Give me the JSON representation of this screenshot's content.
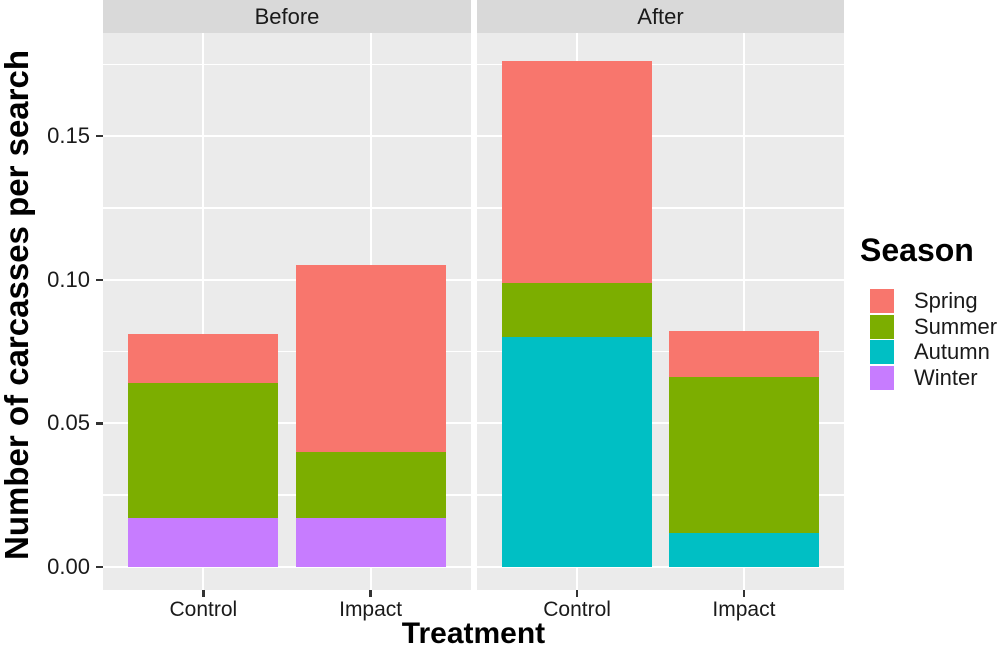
{
  "chart_data": {
    "type": "bar",
    "stacked": true,
    "title": "",
    "xlabel": "Treatment",
    "ylabel": "Number of carcasses per search",
    "ylim": [
      -0.008,
      0.1859
    ],
    "grid": "major and minor horizontal white gridlines, major vertical gridlines at category centers, on grey panel",
    "yticks": [
      {
        "value": 0.0,
        "label": "0.00"
      },
      {
        "value": 0.05,
        "label": "0.05"
      },
      {
        "value": 0.1,
        "label": "0.10"
      },
      {
        "value": 0.15,
        "label": "0.15"
      }
    ],
    "yminor": [
      0.025,
      0.075,
      0.125,
      0.175
    ],
    "colors": {
      "Spring": "#F8766D",
      "Summer": "#7CAE00",
      "Autumn": "#00BFC4",
      "Winter": "#C77CFF"
    },
    "panel_bg": "#EBEBEB",
    "strip_bg": "#D9D9D9",
    "legend_position": "right",
    "legend": {
      "title": "Season",
      "entries": [
        {
          "label": "Spring",
          "color": "#F8766D"
        },
        {
          "label": "Summer",
          "color": "#7CAE00"
        },
        {
          "label": "Autumn",
          "color": "#00BFC4"
        },
        {
          "label": "Winter",
          "color": "#C77CFF"
        }
      ]
    },
    "stack_order_bottom_to_top": [
      "Winter",
      "Autumn",
      "Summer",
      "Spring"
    ],
    "facets": [
      {
        "label": "Before",
        "categories": [
          "Control",
          "Impact"
        ],
        "bars": [
          {
            "category": "Control",
            "total": 0.081,
            "segments": [
              {
                "season": "Winter",
                "value": 0.017
              },
              {
                "season": "Autumn",
                "value": 0.0
              },
              {
                "season": "Summer",
                "value": 0.047
              },
              {
                "season": "Spring",
                "value": 0.017
              }
            ]
          },
          {
            "category": "Impact",
            "total": 0.105,
            "segments": [
              {
                "season": "Winter",
                "value": 0.017
              },
              {
                "season": "Autumn",
                "value": 0.0
              },
              {
                "season": "Summer",
                "value": 0.023
              },
              {
                "season": "Spring",
                "value": 0.065
              }
            ]
          }
        ]
      },
      {
        "label": "After",
        "categories": [
          "Control",
          "Impact"
        ],
        "bars": [
          {
            "category": "Control",
            "total": 0.176,
            "segments": [
              {
                "season": "Winter",
                "value": 0.0
              },
              {
                "season": "Autumn",
                "value": 0.08
              },
              {
                "season": "Summer",
                "value": 0.019
              },
              {
                "season": "Spring",
                "value": 0.077
              }
            ]
          },
          {
            "category": "Impact",
            "total": 0.082,
            "segments": [
              {
                "season": "Winter",
                "value": 0.0
              },
              {
                "season": "Autumn",
                "value": 0.012
              },
              {
                "season": "Summer",
                "value": 0.054
              },
              {
                "season": "Spring",
                "value": 0.016
              }
            ]
          }
        ]
      }
    ]
  }
}
